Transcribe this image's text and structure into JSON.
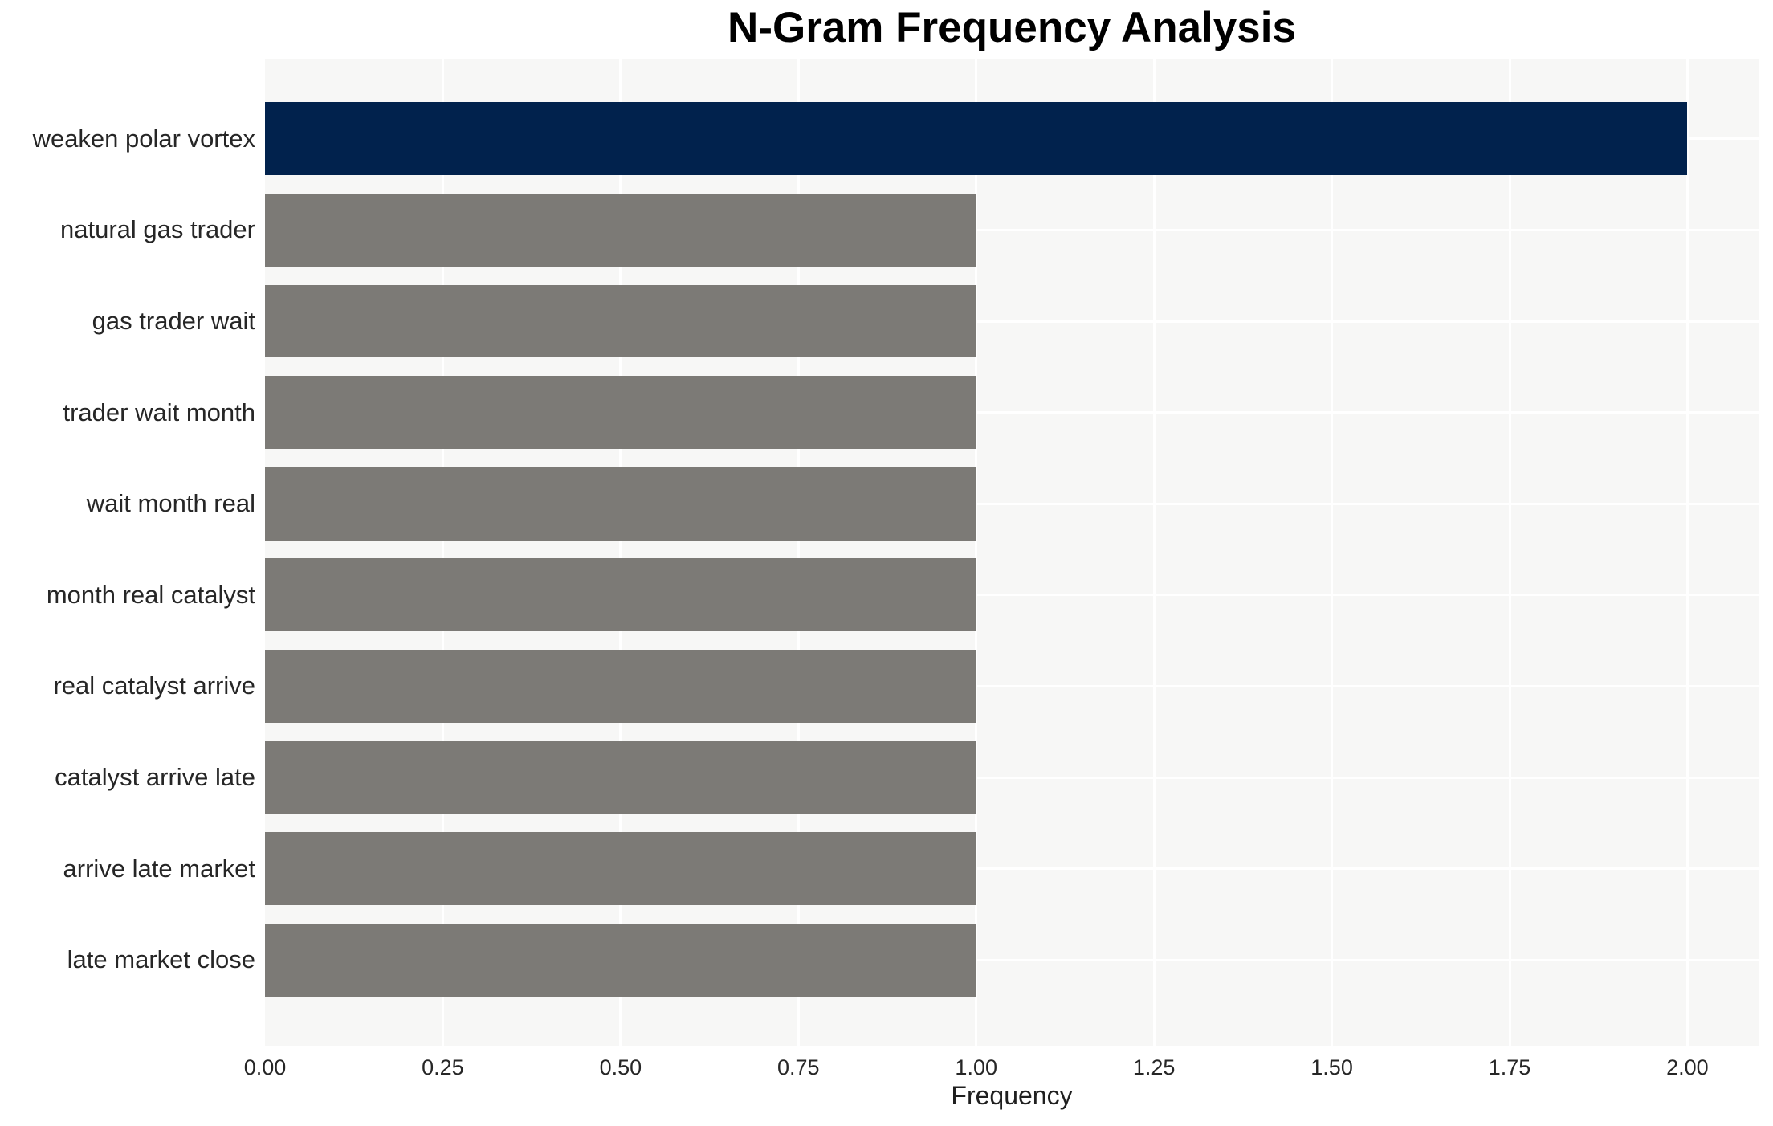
{
  "chart_data": {
    "type": "bar",
    "orientation": "horizontal",
    "title": "N-Gram Frequency Analysis",
    "xlabel": "Frequency",
    "ylabel": "",
    "categories": [
      "weaken polar vortex",
      "natural gas trader",
      "gas trader wait",
      "trader wait month",
      "wait month real",
      "month real catalyst",
      "real catalyst arrive",
      "catalyst arrive late",
      "arrive late market",
      "late market close"
    ],
    "values": [
      2,
      1,
      1,
      1,
      1,
      1,
      1,
      1,
      1,
      1
    ],
    "highlight_index": 0,
    "xlim": [
      0,
      2.1
    ],
    "xticks": [
      0,
      0.25,
      0.5,
      0.75,
      1.0,
      1.25,
      1.5,
      1.75,
      2.0
    ],
    "xtick_labels": [
      "0.00",
      "0.25",
      "0.50",
      "0.75",
      "1.00",
      "1.25",
      "1.50",
      "1.75",
      "2.00"
    ],
    "grid": true,
    "legend": false,
    "bar_height_fraction": 0.8,
    "colors": {
      "highlight_bar": "#01224d",
      "bar": "#7c7a76",
      "plot_background": "#f7f7f6",
      "gridline": "#ffffff",
      "title_text": "#000000",
      "label_text": "#262626",
      "axis_label_text": "#1f1f1f",
      "page_background": "#ffffff"
    }
  }
}
